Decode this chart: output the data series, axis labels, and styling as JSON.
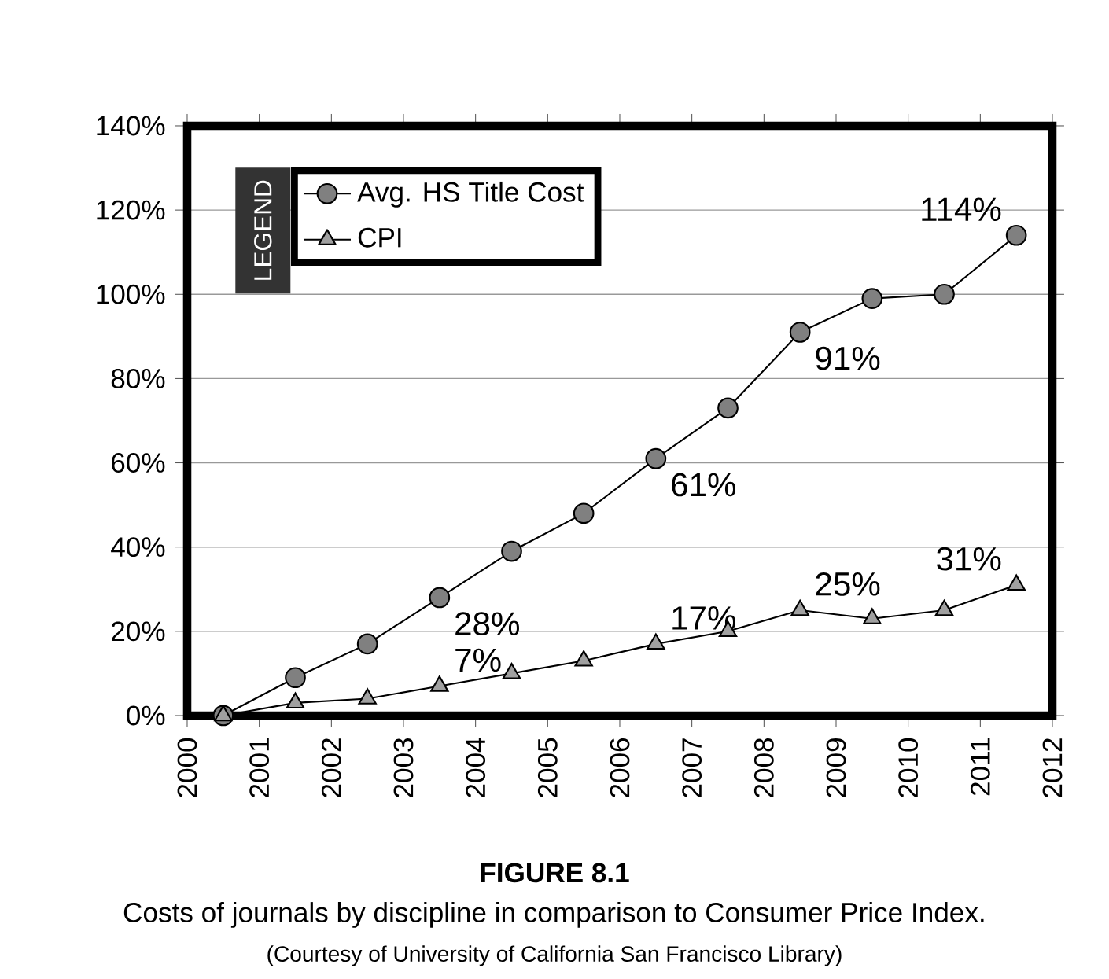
{
  "chart_data": {
    "type": "line",
    "title": "FIGURE 8.1",
    "subtitle": "Costs of journals by discipline in comparison to Consumer Price Index.",
    "annotations": [
      "(Courtesy of University of California San Francisco Library)"
    ],
    "legend_title": "LEGEND",
    "legend": "top left",
    "grid": "y",
    "line_style": "solid",
    "xlim": [
      2000,
      2012
    ],
    "xticks": [
      2000,
      2001,
      2002,
      2003,
      2004,
      2005,
      2006,
      2007,
      2008,
      2009,
      2010,
      2011,
      2012
    ],
    "ylim": [
      0,
      140
    ],
    "yticks": [
      {
        "value": 0,
        "label": "0%"
      },
      {
        "value": 20,
        "label": "20%"
      },
      {
        "value": 40,
        "label": "40%"
      },
      {
        "value": 60,
        "label": "60%"
      },
      {
        "value": 80,
        "label": "80%"
      },
      {
        "value": 100,
        "label": "100%"
      },
      {
        "value": 120,
        "label": "120%"
      },
      {
        "value": 140,
        "label": "140%"
      }
    ],
    "x": [
      2000.5,
      2001.5,
      2002.5,
      2003.5,
      2004.5,
      2005.5,
      2006.5,
      2007.5,
      2008.5,
      2009.5,
      2010.5,
      2011.5
    ],
    "series": [
      {
        "name": "Avg. HS Title Cost",
        "color": "#808080",
        "marker": "circle",
        "values": [
          0,
          9,
          17,
          28,
          39,
          48,
          61,
          73,
          91,
          99,
          100,
          114
        ],
        "value_labels": [
          null,
          null,
          null,
          "28%",
          null,
          null,
          "61%",
          null,
          "91%",
          null,
          null,
          "114%"
        ]
      },
      {
        "name": "CPI",
        "color": "#a0a0a0",
        "marker": "triangle",
        "values": [
          0,
          3,
          4,
          7,
          10,
          13,
          17,
          20,
          25,
          23,
          25,
          31
        ],
        "value_labels": [
          null,
          null,
          null,
          "7%",
          null,
          null,
          "17%",
          null,
          "25%",
          null,
          null,
          "31%"
        ]
      }
    ]
  }
}
